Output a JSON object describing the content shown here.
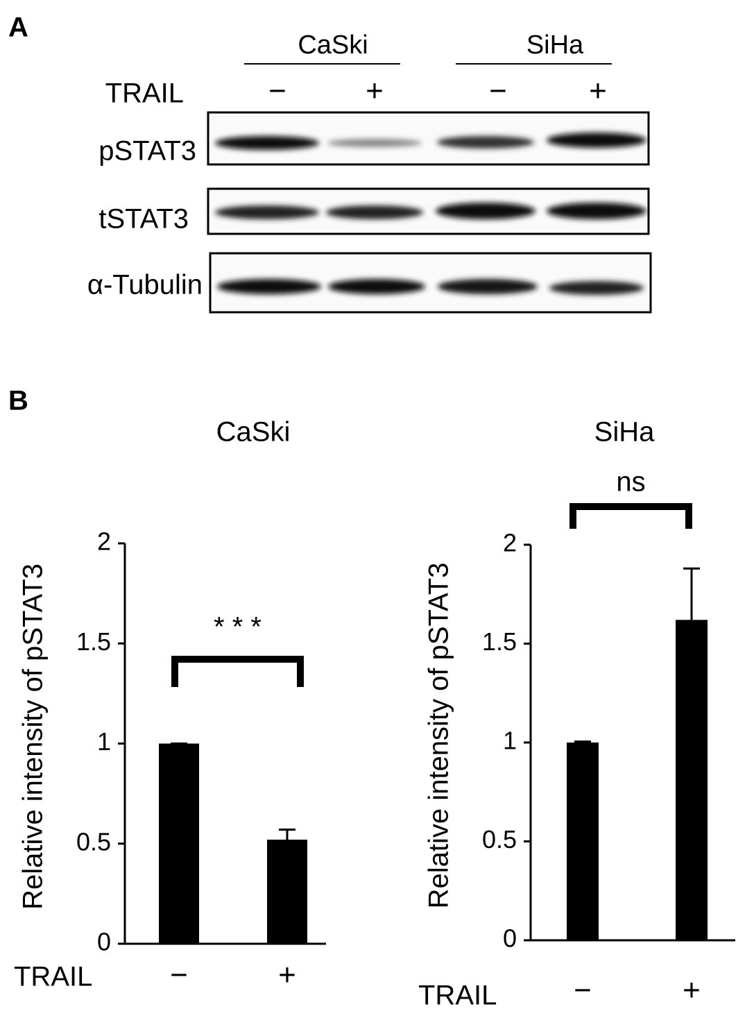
{
  "panel_a": {
    "label": "A",
    "cell_lines": [
      "CaSki",
      "SiHa"
    ],
    "treatment_label": "TRAIL",
    "treatments": [
      "−",
      "+",
      "−",
      "+"
    ],
    "rows": [
      "pSTAT3",
      "tSTAT3",
      "α-Tubulin"
    ]
  },
  "panel_b": {
    "label": "B"
  },
  "chart_data": [
    {
      "type": "bar",
      "title": "CaSki",
      "y_label": "Relative intensity of pSTAT3",
      "x_label": "TRAIL",
      "categories": [
        "−",
        "+"
      ],
      "values": [
        1,
        0.52
      ],
      "errors": [
        0,
        0.05
      ],
      "color": "#000000",
      "ylim": [
        0,
        2
      ],
      "yticks": [
        0,
        0.5,
        1,
        1.5,
        2
      ],
      "annotation": "* * *"
    },
    {
      "type": "bar",
      "title": "SiHa",
      "y_label": "Relative intensity of pSTAT3",
      "x_label": "TRAIL",
      "categories": [
        "−",
        "+"
      ],
      "values": [
        1,
        1.62
      ],
      "errors": [
        0.005,
        0.26
      ],
      "color": "#000000",
      "ylim": [
        0,
        2
      ],
      "yticks": [
        0,
        0.5,
        1,
        1.5,
        2
      ],
      "annotation": "ns"
    }
  ]
}
